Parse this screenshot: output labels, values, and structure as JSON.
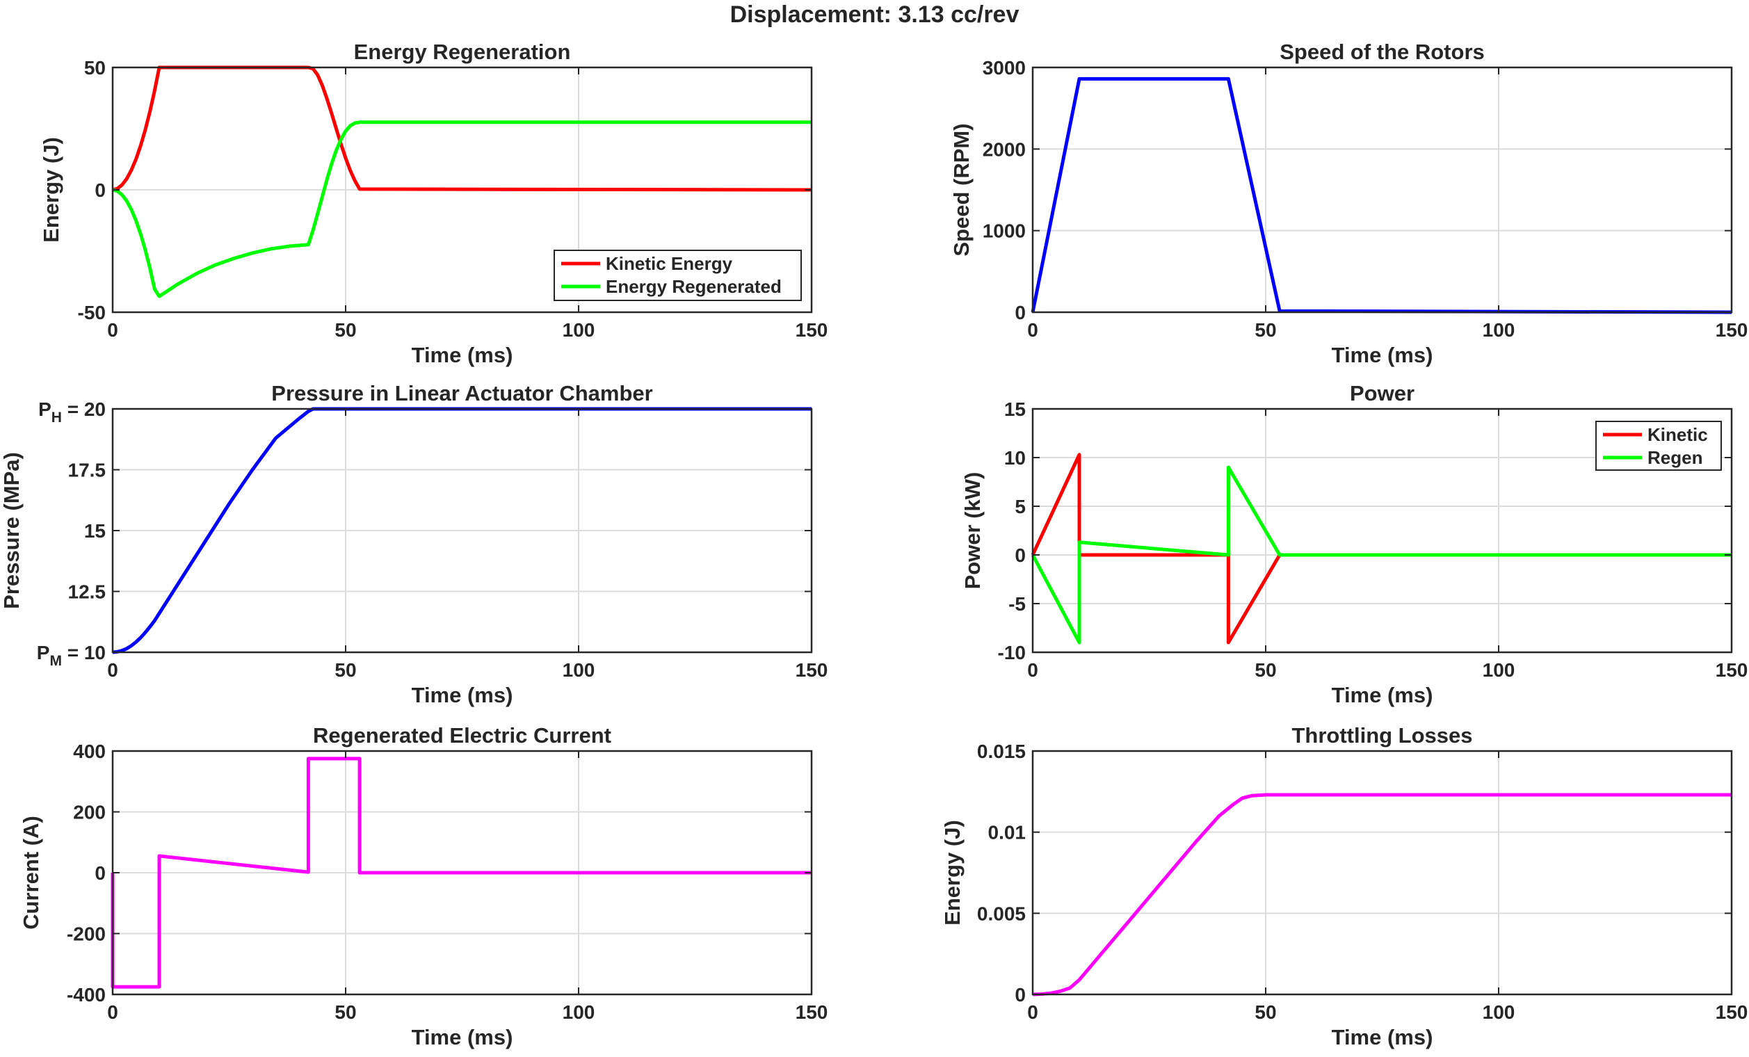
{
  "figure": {
    "title": "Displacement: 3.13 cc/rev"
  },
  "chart_data": [
    {
      "id": "energy-regeneration",
      "type": "line",
      "title": "Energy Regeneration",
      "xlabel": "Time (ms)",
      "ylabel": "Energy (J)",
      "xlim": [
        0,
        150
      ],
      "ylim": [
        -50,
        50
      ],
      "xticks": [
        0,
        50,
        100,
        150
      ],
      "yticks": [
        -50,
        0,
        50
      ],
      "ytick_labels": [
        "-50",
        "0",
        "50"
      ],
      "grid": true,
      "legend": "bottom-right",
      "series": [
        {
          "name": "Kinetic Energy",
          "color": "#ff0000",
          "x": [
            0,
            1,
            2,
            3,
            4,
            5,
            6,
            7,
            8,
            9,
            10,
            42,
            43,
            44,
            45,
            46,
            47,
            48,
            49,
            50,
            51,
            52,
            53,
            150
          ],
          "y": [
            0,
            0.5,
            2,
            4.5,
            8,
            12.5,
            18,
            24.5,
            32,
            40.5,
            50,
            50,
            49.5,
            46.9,
            42.6,
            37.2,
            31.2,
            24.9,
            18.7,
            13,
            7.9,
            3.7,
            0.3,
            0
          ]
        },
        {
          "name": "Energy Regenerated",
          "color": "#00ff00",
          "x": [
            0,
            1,
            2,
            3,
            4,
            5,
            6,
            7,
            8,
            9,
            10,
            14,
            18,
            22,
            26,
            30,
            34,
            38,
            42,
            43,
            44,
            45,
            46,
            47,
            48,
            49,
            50,
            51,
            52,
            53,
            150
          ],
          "y": [
            0,
            -0.5,
            -2,
            -4.5,
            -8,
            -12.5,
            -18,
            -24.5,
            -32,
            -40.5,
            -43.5,
            -38.5,
            -34.2,
            -30.7,
            -28,
            -25.8,
            -24.1,
            -23,
            -22.4,
            -16.5,
            -9.7,
            -2.7,
            4.3,
            10.7,
            16.2,
            20.6,
            24,
            26.2,
            27.3,
            27.6,
            27.6
          ]
        }
      ]
    },
    {
      "id": "speed-of-rotors",
      "type": "line",
      "title": "Speed of the Rotors",
      "xlabel": "Time (ms)",
      "ylabel": "Speed (RPM)",
      "xlim": [
        0,
        150
      ],
      "ylim": [
        0,
        3000
      ],
      "xticks": [
        0,
        50,
        100,
        150
      ],
      "yticks": [
        0,
        1000,
        2000,
        3000
      ],
      "ytick_labels": [
        "0",
        "1000",
        "2000",
        "3000"
      ],
      "grid": true,
      "series": [
        {
          "color": "#0000ff",
          "x": [
            0,
            10,
            42,
            53,
            150
          ],
          "y": [
            0,
            2860,
            2860,
            15,
            0
          ]
        }
      ]
    },
    {
      "id": "pressure-chamber",
      "type": "line",
      "title": "Pressure in Linear Actuator Chamber",
      "xlabel": "Time (ms)",
      "ylabel": "Pressure (MPa)",
      "xlim": [
        0,
        150
      ],
      "ylim": [
        10,
        20
      ],
      "xticks": [
        0,
        50,
        100,
        150
      ],
      "yticks": [
        10,
        12.5,
        15,
        17.5,
        20
      ],
      "ytick_labels": [
        "P_M = 10",
        "12.5",
        "15",
        "17.5",
        "P_H = 20"
      ],
      "grid": true,
      "series": [
        {
          "color": "#0000ff",
          "x": [
            0,
            1,
            2,
            3,
            4,
            5,
            6,
            7,
            8,
            9,
            10,
            12,
            15,
            20,
            25,
            30,
            35,
            40,
            42,
            43,
            150
          ],
          "y": [
            10,
            10.02,
            10.07,
            10.15,
            10.27,
            10.42,
            10.6,
            10.81,
            11.05,
            11.3,
            11.6,
            12.2,
            13.1,
            14.6,
            16.1,
            17.5,
            18.8,
            19.6,
            19.9,
            20,
            20
          ]
        }
      ]
    },
    {
      "id": "power",
      "type": "line",
      "title": "Power",
      "xlabel": "Time (ms)",
      "ylabel": "Power (kW)",
      "xlim": [
        0,
        150
      ],
      "ylim": [
        -10,
        15
      ],
      "xticks": [
        0,
        50,
        100,
        150
      ],
      "yticks": [
        -10,
        -5,
        0,
        5,
        10,
        15
      ],
      "ytick_labels": [
        "-10",
        "-5",
        "0",
        "5",
        "10",
        "15"
      ],
      "grid": true,
      "legend": "top-right",
      "series": [
        {
          "name": "Kinetic",
          "color": "#ff0000",
          "x": [
            0,
            10,
            10,
            42,
            42,
            53,
            150
          ],
          "y": [
            0,
            10.3,
            0,
            0,
            -9,
            0,
            0
          ]
        },
        {
          "name": "Regen",
          "color": "#00ff00",
          "x": [
            0,
            10,
            10,
            42,
            42,
            53,
            150
          ],
          "y": [
            0,
            -9,
            1.3,
            0,
            9,
            0,
            0
          ]
        }
      ]
    },
    {
      "id": "regenerated-current",
      "type": "line",
      "title": "Regenerated Electric Current",
      "xlabel": "Time (ms)",
      "ylabel": "Current (A)",
      "xlim": [
        0,
        150
      ],
      "ylim": [
        -400,
        400
      ],
      "xticks": [
        0,
        50,
        100,
        150
      ],
      "yticks": [
        -400,
        -200,
        0,
        200,
        400
      ],
      "ytick_labels": [
        "-400",
        "-200",
        "0",
        "200",
        "400"
      ],
      "grid": true,
      "series": [
        {
          "color": "#ff00ff",
          "x": [
            0,
            0,
            10,
            10,
            42,
            42,
            53,
            53,
            150
          ],
          "y": [
            0,
            -375,
            -375,
            55,
            2,
            375,
            375,
            0,
            0
          ]
        }
      ]
    },
    {
      "id": "throttling-losses",
      "type": "line",
      "title": "Throttling Losses",
      "xlabel": "Time (ms)",
      "ylabel": "Energy (J)",
      "xlim": [
        0,
        150
      ],
      "ylim": [
        0,
        0.015
      ],
      "xticks": [
        0,
        50,
        100,
        150
      ],
      "yticks": [
        0,
        0.005,
        0.01,
        0.015
      ],
      "ytick_labels": [
        "0",
        "0.005",
        "0.01",
        "0.015"
      ],
      "grid": true,
      "series": [
        {
          "color": "#ff00ff",
          "x": [
            0,
            2,
            4,
            6,
            8,
            10,
            15,
            20,
            25,
            30,
            35,
            40,
            43,
            45,
            47,
            50,
            55,
            150
          ],
          "y": [
            0,
            2e-05,
            8e-05,
            0.0002,
            0.0004,
            0.0009,
            0.0026,
            0.0043,
            0.006,
            0.0077,
            0.0094,
            0.011,
            0.0117,
            0.0121,
            0.01225,
            0.0123,
            0.0123,
            0.0123
          ]
        }
      ]
    }
  ]
}
